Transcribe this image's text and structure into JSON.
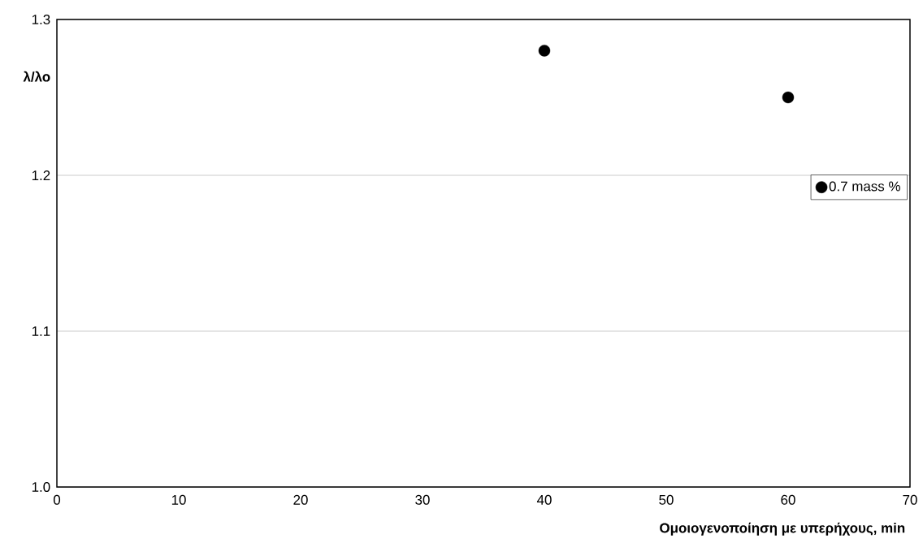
{
  "chart_data": {
    "type": "scatter",
    "xlabel": "Ομοιογενοποίηση με υπερήχους, min",
    "ylabel": "λ/λο",
    "series": [
      {
        "name": "0.7 mass %",
        "color": "#000000",
        "x": [
          40,
          60
        ],
        "values": [
          1.28,
          1.25
        ]
      }
    ],
    "xlim": [
      0,
      70
    ],
    "xticks": [
      0,
      10,
      20,
      30,
      40,
      50,
      60,
      70
    ],
    "ylim": [
      1.0,
      1.3
    ],
    "yticks": [
      {
        "value": 1.0,
        "label": "1.0"
      },
      1.1,
      1.2,
      1.3
    ],
    "grid": "y",
    "legend": "right",
    "marker": "circle"
  }
}
